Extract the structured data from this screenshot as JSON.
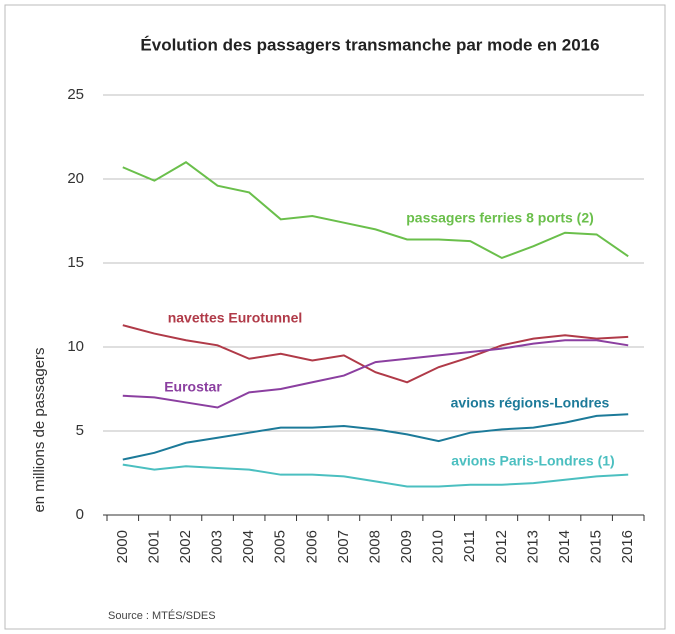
{
  "chart_data": {
    "type": "line",
    "title": "Évolution des passagers transmanche par mode en 2016",
    "y_label": "en millions de passagers",
    "source": "Source : MTÉS/SDES",
    "categories": [
      "2000",
      "2001",
      "2002",
      "2003",
      "2004",
      "2005",
      "2006",
      "2007",
      "2008",
      "2009",
      "2010",
      "2011",
      "2012",
      "2013",
      "2014",
      "2015",
      "2016"
    ],
    "series": [
      {
        "name": "passagers ferries 8 ports (2)",
        "color": "#6abf4b",
        "values": [
          20.7,
          19.9,
          21.0,
          19.6,
          19.2,
          17.6,
          17.8,
          17.4,
          17.0,
          16.4,
          16.4,
          16.3,
          15.3,
          16.0,
          16.8,
          16.7,
          15.4
        ]
      },
      {
        "name": "navettes Eurotunnel",
        "color": "#b03a48",
        "values": [
          11.3,
          10.8,
          10.4,
          10.1,
          9.3,
          9.6,
          9.2,
          9.5,
          8.5,
          7.9,
          8.8,
          9.4,
          10.1,
          10.5,
          10.7,
          10.5,
          10.6
        ]
      },
      {
        "name": "Eurostar",
        "color": "#8b3fa0",
        "values": [
          7.1,
          7.0,
          6.7,
          6.4,
          7.3,
          7.5,
          7.9,
          8.3,
          9.1,
          9.3,
          9.5,
          9.7,
          9.9,
          10.2,
          10.4,
          10.4,
          10.1
        ]
      },
      {
        "name": "avions régions-Londres",
        "color": "#1c7a99",
        "values": [
          3.3,
          3.7,
          4.3,
          4.6,
          4.9,
          5.2,
          5.2,
          5.3,
          5.1,
          4.8,
          4.4,
          4.9,
          5.1,
          5.2,
          5.5,
          5.9,
          6.0
        ]
      },
      {
        "name": "avions Paris-Londres (1)",
        "color": "#4bbfc0",
        "values": [
          3.0,
          2.7,
          2.9,
          2.8,
          2.7,
          2.4,
          2.4,
          2.3,
          2.0,
          1.7,
          1.7,
          1.8,
          1.8,
          1.9,
          2.1,
          2.3,
          2.4
        ]
      }
    ],
    "ylim": [
      0,
      25
    ],
    "yticks": [
      0,
      5,
      10,
      15,
      20,
      25
    ],
    "grid": true
  }
}
